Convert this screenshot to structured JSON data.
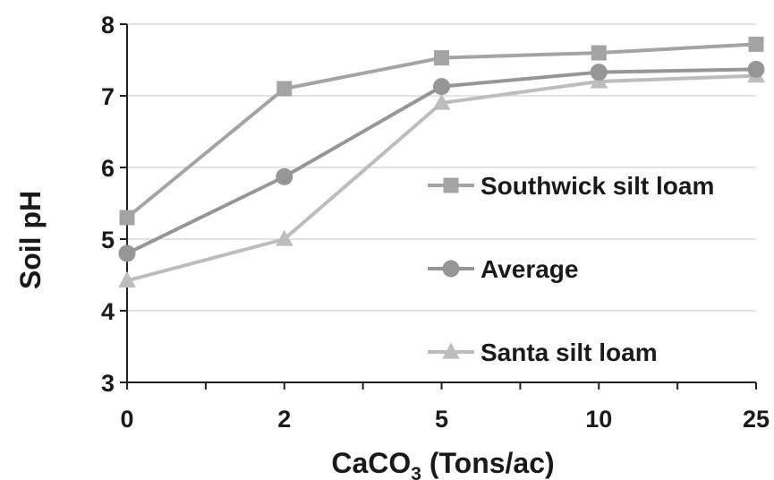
{
  "chart_data": {
    "type": "line",
    "title": "",
    "xlabel_main": "CaCO",
    "xlabel_sub": "3",
    "xlabel_rest": " (Tons/ac)",
    "ylabel": "Soil pH",
    "categories": [
      "0",
      "2",
      "5",
      "10",
      "25"
    ],
    "ylim": [
      3,
      8
    ],
    "yticks": [
      "3",
      "4",
      "5",
      "6",
      "7",
      "8"
    ],
    "grid": "horizontal",
    "legend_position": "right",
    "series": [
      {
        "name": "Southwick silt loam",
        "marker": "square",
        "color": "#a4a4a4",
        "values": [
          5.3,
          7.1,
          7.53,
          7.6,
          7.72
        ]
      },
      {
        "name": "Average",
        "marker": "circle",
        "color": "#969696",
        "values": [
          4.8,
          5.87,
          7.13,
          7.33,
          7.37
        ]
      },
      {
        "name": "Santa silt loam",
        "marker": "triangle",
        "color": "#bdbdbd",
        "values": [
          4.42,
          5.0,
          6.9,
          7.2,
          7.28
        ]
      }
    ]
  }
}
